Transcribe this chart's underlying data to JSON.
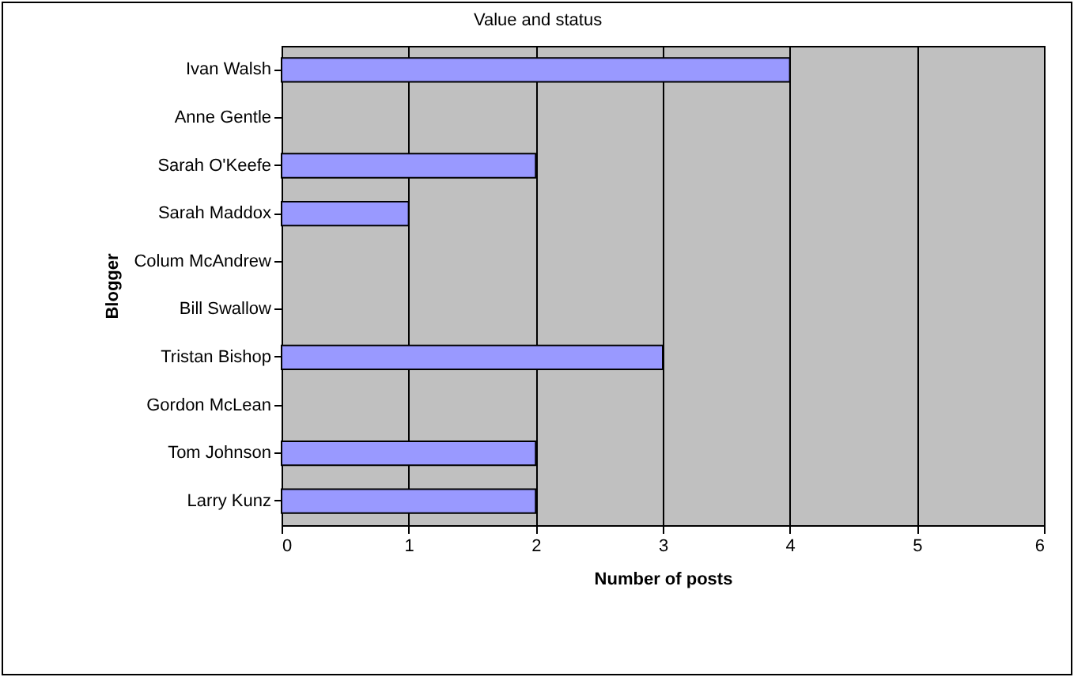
{
  "chart_data": {
    "type": "bar",
    "orientation": "horizontal",
    "title": "Value and status",
    "xlabel": "Number of posts",
    "ylabel": "Blogger",
    "categories": [
      "Ivan Walsh",
      "Anne Gentle",
      "Sarah O'Keefe",
      "Sarah Maddox",
      "Colum McAndrew",
      "Bill Swallow",
      "Tristan Bishop",
      "Gordon McLean",
      "Tom Johnson",
      "Larry Kunz"
    ],
    "values": [
      4,
      0,
      2,
      1,
      0,
      0,
      3,
      0,
      2,
      2
    ],
    "color": "#9999ff",
    "xlim": [
      0,
      6
    ],
    "xticks": [
      0,
      1,
      2,
      3,
      4,
      5,
      6
    ],
    "grid": "x"
  }
}
